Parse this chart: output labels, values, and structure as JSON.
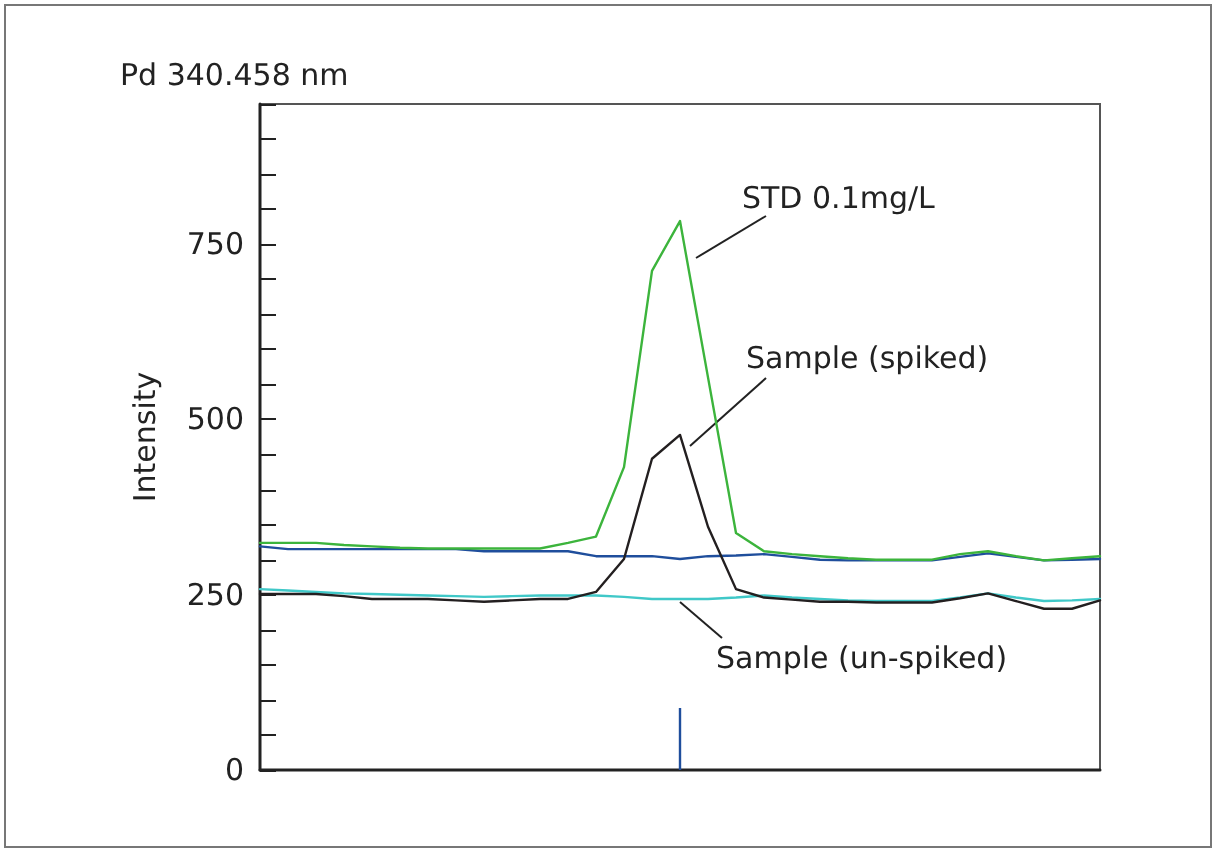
{
  "chart_data": {
    "type": "line",
    "title": "Pd 340.458 nm",
    "ylabel": "Intensity",
    "categories": [
      null,
      null,
      null,
      null,
      null,
      null,
      null,
      null,
      null,
      null,
      null,
      null,
      null,
      null,
      null,
      null,
      null,
      null,
      null,
      null,
      null,
      null,
      null,
      null,
      null,
      null,
      null,
      null,
      null,
      null,
      null
    ],
    "ylim": [
      0,
      950
    ],
    "yticks": [
      0,
      {
        "value": 50,
        "label": null
      },
      {
        "value": 100,
        "label": null
      },
      {
        "value": 150,
        "label": null
      },
      {
        "value": 200,
        "label": null
      },
      250,
      {
        "value": 300,
        "label": null
      },
      {
        "value": 350,
        "label": null
      },
      {
        "value": 400,
        "label": null
      },
      {
        "value": 450,
        "label": null
      },
      500,
      {
        "value": 550,
        "label": null
      },
      {
        "value": 600,
        "label": null
      },
      {
        "value": 650,
        "label": null
      },
      {
        "value": 700,
        "label": null
      },
      750,
      {
        "value": 800,
        "label": null
      },
      {
        "value": 850,
        "label": null
      },
      {
        "value": 900,
        "label": null
      },
      {
        "value": 950,
        "label": null
      }
    ],
    "grid": false,
    "marker": "none",
    "line_style": "solid",
    "series": [
      {
        "color": "#1f4e9c",
        "values": [
          319,
          315,
          315,
          315,
          315,
          315,
          315,
          315,
          312,
          312,
          312,
          312,
          305,
          305,
          305,
          301,
          305,
          306,
          308,
          304,
          300,
          299,
          299,
          299,
          299,
          304,
          309,
          304,
          299,
          300,
          301
        ]
      },
      {
        "color": "#3cb43c",
        "values": [
          324,
          324,
          324,
          321,
          319,
          317,
          316,
          316,
          316,
          316,
          316,
          324,
          333,
          432,
          712,
          783,
          560,
          338,
          312,
          308,
          305,
          302,
          300,
          300,
          300,
          308,
          312,
          305,
          299,
          302,
          305
        ]
      },
      {
        "color": "#40c8c8",
        "values": [
          258,
          256,
          254,
          252,
          251,
          250,
          249,
          248,
          247,
          248,
          249,
          249,
          249,
          247,
          244,
          244,
          244,
          246,
          249,
          246,
          244,
          242,
          241,
          241,
          241,
          246,
          252,
          246,
          241,
          242,
          244
        ]
      },
      {
        "color": "#231f20",
        "values": [
          251,
          251,
          251,
          248,
          244,
          244,
          244,
          242,
          240,
          242,
          244,
          244,
          254,
          301,
          444,
          478,
          347,
          258,
          246,
          243,
          240,
          240,
          239,
          239,
          239,
          245,
          252,
          241,
          230,
          230,
          242
        ]
      }
    ],
    "annotations": [
      "STD 0.1mg/L",
      "Sample (spiked)",
      "Sample (un-spiked)"
    ]
  }
}
